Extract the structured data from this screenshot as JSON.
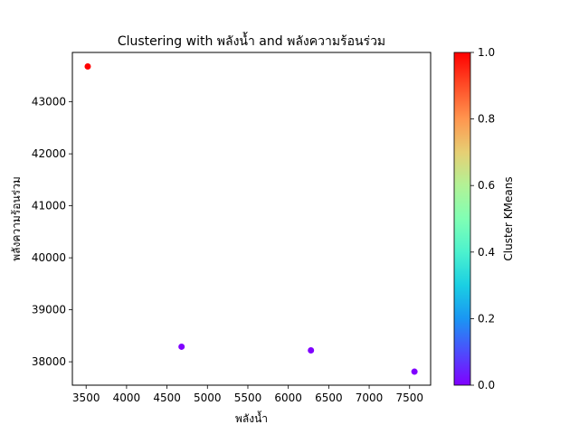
{
  "chart_data": {
    "type": "scatter",
    "title": "Clustering with พลังน้ำ and พลังความร้อนร่วม",
    "xlabel": "พลังน้ำ",
    "ylabel": "พลังความร้อนร่วม",
    "xlim": [
      3330,
      7760
    ],
    "ylim": [
      37550,
      43950
    ],
    "xticks": [
      3500,
      4000,
      4500,
      5000,
      5500,
      6000,
      6500,
      7000,
      7500
    ],
    "yticks": [
      38000,
      39000,
      40000,
      41000,
      42000,
      43000
    ],
    "grid": false,
    "points": [
      {
        "x": 3520,
        "y": 43680,
        "cluster": 1
      },
      {
        "x": 4680,
        "y": 38290,
        "cluster": 0
      },
      {
        "x": 6280,
        "y": 38220,
        "cluster": 0
      },
      {
        "x": 7560,
        "y": 37810,
        "cluster": 0
      }
    ],
    "colorbar": {
      "label": "Cluster KMeans",
      "range": [
        0.0,
        1.0
      ],
      "ticks": [
        "0.0",
        "0.2",
        "0.4",
        "0.6",
        "0.8",
        "1.0"
      ],
      "colormap": "rainbow",
      "colors": {
        "low": "#8000ff",
        "high": "#ff0000"
      }
    }
  }
}
